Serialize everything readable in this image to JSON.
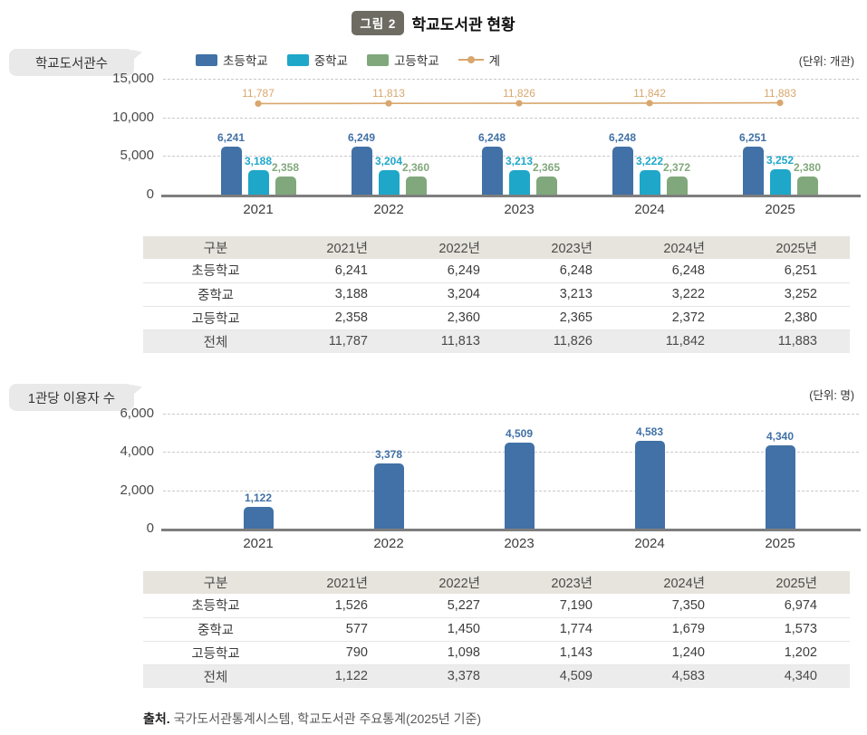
{
  "title": {
    "badge": "그림 2",
    "text": "학교도서관 현황"
  },
  "sections": [
    {
      "label": "학교도서관수",
      "unit": "(단위: 개관)",
      "legend": [
        {
          "name": "초등학교",
          "color": "#4171a6",
          "type": "box"
        },
        {
          "name": "중학교",
          "color": "#1ea7c8",
          "type": "box"
        },
        {
          "name": "고등학교",
          "color": "#81a87c",
          "type": "box"
        },
        {
          "name": "계",
          "color": "#d8a76e",
          "type": "line"
        }
      ]
    },
    {
      "label": "1관당 이용자 수",
      "unit": "(단위: 명)"
    }
  ],
  "chart_data": [
    {
      "type": "bar",
      "title": "학교도서관수",
      "unit": "(단위: 개관)",
      "categories": [
        "2021",
        "2022",
        "2023",
        "2024",
        "2025"
      ],
      "series": [
        {
          "name": "초등학교",
          "type": "bar",
          "color": "#4171a6",
          "values": [
            6241,
            6249,
            6248,
            6248,
            6251
          ]
        },
        {
          "name": "중학교",
          "type": "bar",
          "color": "#1ea7c8",
          "values": [
            3188,
            3204,
            3213,
            3222,
            3252
          ]
        },
        {
          "name": "고등학교",
          "type": "bar",
          "color": "#81a87c",
          "values": [
            2358,
            2360,
            2365,
            2372,
            2380
          ]
        },
        {
          "name": "계",
          "type": "line",
          "color": "#d8a76e",
          "values": [
            11787,
            11813,
            11826,
            11842,
            11883
          ]
        }
      ],
      "ylim": [
        0,
        15000
      ],
      "yticks": [
        0,
        5000,
        10000,
        15000
      ],
      "grid": "dashed",
      "legend_position": "top"
    },
    {
      "type": "bar",
      "title": "1관당 이용자 수",
      "unit": "(단위: 명)",
      "categories": [
        "2021",
        "2022",
        "2023",
        "2024",
        "2025"
      ],
      "series": [
        {
          "name": "1관당 이용자 수",
          "type": "bar",
          "color": "#4171a6",
          "values": [
            1122,
            3378,
            4509,
            4583,
            4340
          ]
        }
      ],
      "ylim": [
        0,
        6000
      ],
      "yticks": [
        0,
        2000,
        4000,
        6000
      ],
      "grid": "dashed",
      "legend_position": "none"
    }
  ],
  "tables": [
    {
      "headers": [
        "구분",
        "2021년",
        "2022년",
        "2023년",
        "2024년",
        "2025년"
      ],
      "rows": [
        {
          "label": "초등학교",
          "values": [
            "6,241",
            "6,249",
            "6,248",
            "6,248",
            "6,251"
          ]
        },
        {
          "label": "중학교",
          "values": [
            "3,188",
            "3,204",
            "3,213",
            "3,222",
            "3,252"
          ]
        },
        {
          "label": "고등학교",
          "values": [
            "2,358",
            "2,360",
            "2,365",
            "2,372",
            "2,380"
          ]
        },
        {
          "label": "전체",
          "values": [
            "11,787",
            "11,813",
            "11,826",
            "11,842",
            "11,883"
          ]
        }
      ]
    },
    {
      "headers": [
        "구분",
        "2021년",
        "2022년",
        "2023년",
        "2024년",
        "2025년"
      ],
      "rows": [
        {
          "label": "초등학교",
          "values": [
            "1,526",
            "5,227",
            "7,190",
            "7,350",
            "6,974"
          ]
        },
        {
          "label": "중학교",
          "values": [
            "577",
            "1,450",
            "1,774",
            "1,679",
            "1,573"
          ]
        },
        {
          "label": "고등학교",
          "values": [
            "790",
            "1,098",
            "1,143",
            "1,240",
            "1,202"
          ]
        },
        {
          "label": "전체",
          "values": [
            "1,122",
            "3,378",
            "4,509",
            "4,583",
            "4,340"
          ]
        }
      ]
    }
  ],
  "source": {
    "prefix": "출처.",
    "text": "국가도서관통계시스템, 학교도서관 주요통계(2025년 기준)"
  }
}
